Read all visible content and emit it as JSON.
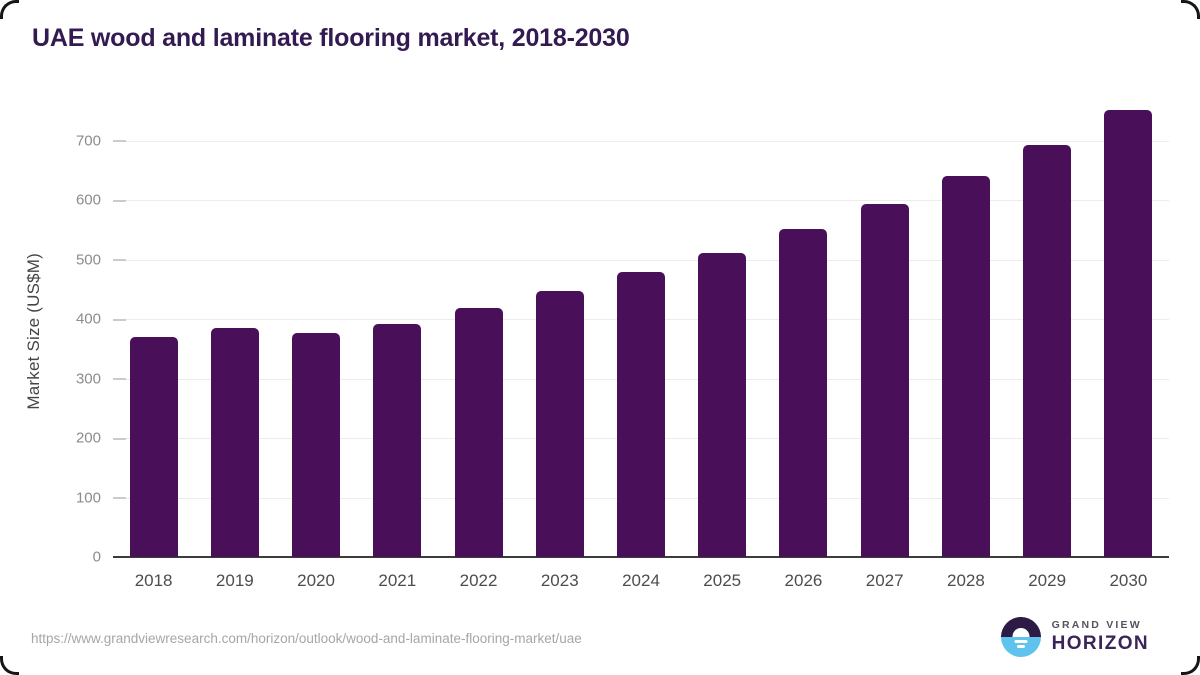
{
  "chart_data": {
    "type": "bar",
    "title": "UAE wood and laminate flooring market, 2018-2030",
    "categories": [
      "2018",
      "2019",
      "2020",
      "2021",
      "2022",
      "2023",
      "2024",
      "2025",
      "2026",
      "2027",
      "2028",
      "2029",
      "2030"
    ],
    "values": [
      370,
      385,
      376,
      392,
      418,
      448,
      480,
      512,
      551,
      594,
      640,
      692,
      751
    ],
    "xlabel": "",
    "ylabel": "Market Size (US$M)",
    "ylim": [
      0,
      760
    ],
    "yticks": [
      0,
      100,
      200,
      300,
      400,
      500,
      600,
      700
    ],
    "grid": true,
    "legend": "none",
    "bar_color": "#491059"
  },
  "footer": {
    "source_url": "https://www.grandviewresearch.com/horizon/outlook/wood-and-laminate-flooring-market/uae",
    "logo": {
      "brand_top": "GRAND VIEW",
      "brand_bottom": "HORIZON"
    }
  },
  "colors": {
    "title_text": "#331a50",
    "bar": "#491059",
    "grid_line": "#ececec",
    "baseline": "#3c3c3c",
    "x_tick_text": "#4d4d4d",
    "y_tick_text": "#8c8c8c",
    "y_axis_title_text": "#454545",
    "url_text": "#a6a6a6",
    "logo_dark_half": "#2b1b45",
    "logo_blue_half": "#5fc3ee"
  }
}
